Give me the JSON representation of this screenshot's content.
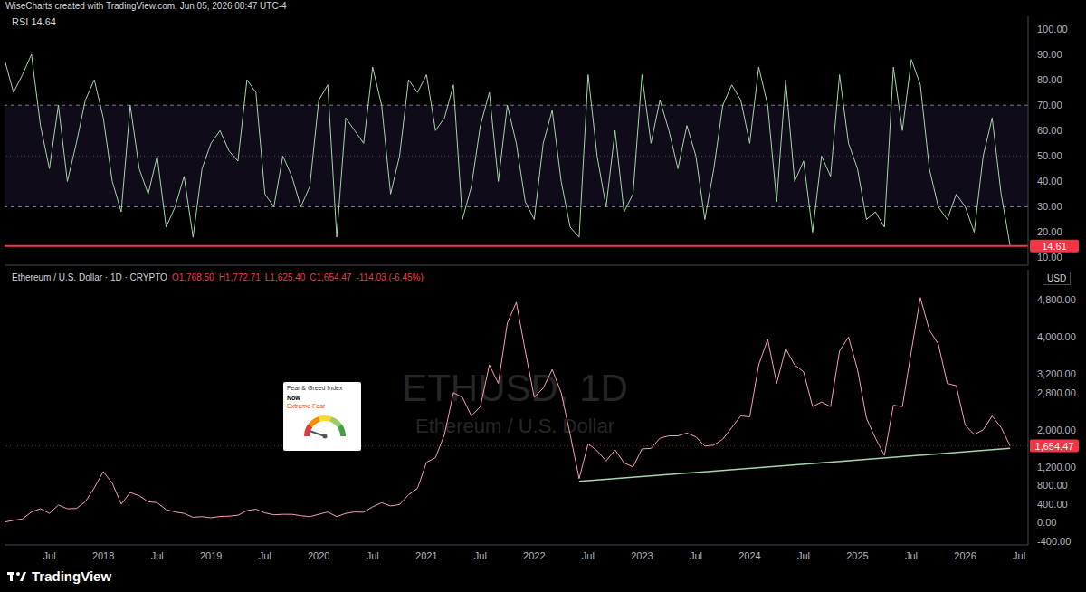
{
  "header": "WiseCharts created with TradingView.com, Jun 05, 2026 08:47 UTC-4",
  "footer": "TradingView",
  "chart_data": [
    {
      "type": "line",
      "title": "RSI 14.64",
      "x": [
        "2017-02",
        "2017-03",
        "2017-04",
        "2017-05",
        "2017-06",
        "2017-07",
        "2017-08",
        "2017-09",
        "2017-10",
        "2017-11",
        "2017-12",
        "2018-01",
        "2018-02",
        "2018-03",
        "2018-04",
        "2018-05",
        "2018-06",
        "2018-07",
        "2018-08",
        "2018-09",
        "2018-10",
        "2018-11",
        "2018-12",
        "2019-01",
        "2019-02",
        "2019-03",
        "2019-04",
        "2019-05",
        "2019-06",
        "2019-07",
        "2019-08",
        "2019-09",
        "2019-10",
        "2019-11",
        "2019-12",
        "2020-01",
        "2020-02",
        "2020-03",
        "2020-04",
        "2020-05",
        "2020-06",
        "2020-07",
        "2020-08",
        "2020-09",
        "2020-10",
        "2020-11",
        "2020-12",
        "2021-01",
        "2021-02",
        "2021-03",
        "2021-04",
        "2021-05",
        "2021-06",
        "2021-07",
        "2021-08",
        "2021-09",
        "2021-10",
        "2021-11",
        "2021-12",
        "2022-01",
        "2022-02",
        "2022-03",
        "2022-04",
        "2022-05",
        "2022-06",
        "2022-07",
        "2022-08",
        "2022-09",
        "2022-10",
        "2022-11",
        "2022-12",
        "2023-01",
        "2023-02",
        "2023-03",
        "2023-04",
        "2023-05",
        "2023-06",
        "2023-07",
        "2023-08",
        "2023-09",
        "2023-10",
        "2023-11",
        "2023-12",
        "2024-01",
        "2024-02",
        "2024-03",
        "2024-04",
        "2024-05",
        "2024-06",
        "2024-07",
        "2024-08",
        "2024-09",
        "2024-10",
        "2024-11",
        "2024-12",
        "2025-01",
        "2025-02",
        "2025-03",
        "2025-04",
        "2025-05",
        "2025-06",
        "2025-07",
        "2025-08",
        "2025-09",
        "2025-10",
        "2025-11",
        "2025-12",
        "2026-01",
        "2026-02",
        "2026-03",
        "2026-04",
        "2026-05",
        "2026-06"
      ],
      "values": [
        88,
        75,
        82,
        90,
        62,
        45,
        70,
        40,
        55,
        72,
        80,
        65,
        40,
        28,
        70,
        45,
        35,
        50,
        22,
        30,
        42,
        18,
        45,
        55,
        60,
        52,
        48,
        80,
        75,
        35,
        30,
        50,
        42,
        30,
        38,
        72,
        78,
        18,
        65,
        60,
        55,
        85,
        70,
        35,
        50,
        80,
        75,
        82,
        60,
        65,
        78,
        25,
        38,
        62,
        75,
        40,
        70,
        55,
        32,
        25,
        55,
        68,
        40,
        22,
        18,
        82,
        50,
        30,
        60,
        28,
        35,
        82,
        55,
        72,
        60,
        45,
        62,
        50,
        25,
        45,
        70,
        78,
        72,
        55,
        85,
        70,
        32,
        80,
        40,
        48,
        20,
        50,
        42,
        82,
        55,
        45,
        25,
        28,
        22,
        85,
        60,
        88,
        78,
        45,
        30,
        25,
        35,
        30,
        20,
        50,
        65,
        35,
        14.64
      ],
      "color": "#a5d6a7",
      "xlim": [
        "2017-02",
        "2026-08"
      ],
      "ylim": [
        7,
        105
      ],
      "yticks": [
        {
          "value": 10,
          "label": "10.00"
        },
        {
          "value": 20,
          "label": "20.00"
        },
        {
          "value": 30,
          "label": "30.00"
        },
        {
          "value": 40,
          "label": "40.00"
        },
        {
          "value": 50,
          "label": "50.00"
        },
        {
          "value": 60,
          "label": "60.00"
        },
        {
          "value": 70,
          "label": "70.00"
        },
        {
          "value": 80,
          "label": "80.00"
        },
        {
          "value": 90,
          "label": "90.00"
        },
        {
          "value": 100,
          "label": "100.00"
        }
      ],
      "band": [
        30,
        70
      ],
      "midline": 50,
      "reference_line": {
        "value": 14.61,
        "color": "#f23645"
      },
      "tick_labels": "y",
      "grid": false
    },
    {
      "type": "line",
      "title": "Ethereum / U.S. Dollar · 1D · CRYPTO",
      "ohlc": [
        "O1,768.50",
        "H1,772.71",
        "L1,625.40",
        "C1,654.47",
        "-114.03 (-6.45%)"
      ],
      "axis_label": "USD",
      "watermark": [
        "ETHUSD, 1D",
        "Ethereum / U.S. Dollar"
      ],
      "inset": {
        "title": "Fear & Greed Index",
        "label": "Now",
        "status": "Extreme Fear"
      },
      "x": [
        "2017-02",
        "2017-03",
        "2017-04",
        "2017-05",
        "2017-06",
        "2017-07",
        "2017-08",
        "2017-09",
        "2017-10",
        "2017-11",
        "2017-12",
        "2018-01",
        "2018-02",
        "2018-03",
        "2018-04",
        "2018-05",
        "2018-06",
        "2018-07",
        "2018-08",
        "2018-09",
        "2018-10",
        "2018-11",
        "2018-12",
        "2019-01",
        "2019-02",
        "2019-03",
        "2019-04",
        "2019-05",
        "2019-06",
        "2019-07",
        "2019-08",
        "2019-09",
        "2019-10",
        "2019-11",
        "2019-12",
        "2020-01",
        "2020-02",
        "2020-03",
        "2020-04",
        "2020-05",
        "2020-06",
        "2020-07",
        "2020-08",
        "2020-09",
        "2020-10",
        "2020-11",
        "2020-12",
        "2021-01",
        "2021-02",
        "2021-03",
        "2021-04",
        "2021-05",
        "2021-06",
        "2021-07",
        "2021-08",
        "2021-09",
        "2021-10",
        "2021-11",
        "2021-12",
        "2022-01",
        "2022-02",
        "2022-03",
        "2022-04",
        "2022-05",
        "2022-06",
        "2022-07",
        "2022-08",
        "2022-09",
        "2022-10",
        "2022-11",
        "2022-12",
        "2023-01",
        "2023-02",
        "2023-03",
        "2023-04",
        "2023-05",
        "2023-06",
        "2023-07",
        "2023-08",
        "2023-09",
        "2023-10",
        "2023-11",
        "2023-12",
        "2024-01",
        "2024-02",
        "2024-03",
        "2024-04",
        "2024-05",
        "2024-06",
        "2024-07",
        "2024-08",
        "2024-09",
        "2024-10",
        "2024-11",
        "2024-12",
        "2025-01",
        "2025-02",
        "2025-03",
        "2025-04",
        "2025-05",
        "2025-06",
        "2025-07",
        "2025-08",
        "2025-09",
        "2025-10",
        "2025-11",
        "2025-12",
        "2026-01",
        "2026-02",
        "2026-03",
        "2026-04",
        "2026-05",
        "2026-06"
      ],
      "values": [
        13,
        50,
        80,
        230,
        300,
        200,
        380,
        300,
        305,
        450,
        750,
        1100,
        850,
        400,
        650,
        580,
        450,
        430,
        280,
        230,
        200,
        115,
        130,
        105,
        135,
        140,
        160,
        260,
        290,
        210,
        170,
        180,
        180,
        150,
        130,
        180,
        230,
        130,
        200,
        230,
        225,
        340,
        430,
        360,
        390,
        600,
        740,
        1300,
        1400,
        1900,
        2800,
        2700,
        2300,
        2500,
        3400,
        3000,
        4300,
        4750,
        3700,
        2700,
        2900,
        3300,
        2800,
        1900,
        950,
        1700,
        1550,
        1330,
        1570,
        1290,
        1200,
        1590,
        1600,
        1820,
        1870,
        1870,
        1930,
        1850,
        1650,
        1670,
        1800,
        2050,
        2300,
        2280,
        3400,
        3950,
        3000,
        3750,
        3400,
        3250,
        2500,
        2600,
        2500,
        3700,
        4000,
        3300,
        2250,
        1820,
        1450,
        2530,
        2500,
        3700,
        4850,
        4150,
        3850,
        3000,
        2950,
        2100,
        1900,
        2000,
        2300,
        2050,
        1654.47
      ],
      "color": "#f7a1ae",
      "xlim": [
        "2017-02",
        "2026-08"
      ],
      "xticks": [
        {
          "value": "2017-07",
          "label": "Jul"
        },
        {
          "value": "2018-01",
          "label": "2018"
        },
        {
          "value": "2018-07",
          "label": "Jul"
        },
        {
          "value": "2019-01",
          "label": "2019"
        },
        {
          "value": "2019-07",
          "label": "Jul"
        },
        {
          "value": "2020-01",
          "label": "2020"
        },
        {
          "value": "2020-07",
          "label": "Jul"
        },
        {
          "value": "2021-01",
          "label": "2021"
        },
        {
          "value": "2021-07",
          "label": "Jul"
        },
        {
          "value": "2022-01",
          "label": "2022"
        },
        {
          "value": "2022-07",
          "label": "Jul"
        },
        {
          "value": "2023-01",
          "label": "2023"
        },
        {
          "value": "2023-07",
          "label": "Jul"
        },
        {
          "value": "2024-01",
          "label": "2024"
        },
        {
          "value": "2024-07",
          "label": "Jul"
        },
        {
          "value": "2025-01",
          "label": "2025"
        },
        {
          "value": "2025-07",
          "label": "Jul"
        },
        {
          "value": "2026-01",
          "label": "2026"
        },
        {
          "value": "2026-07",
          "label": "Jul"
        }
      ],
      "ylim": [
        -480,
        5450
      ],
      "yticks": [
        {
          "value": -400,
          "label": "-400.00"
        },
        {
          "value": 0,
          "label": "0.00"
        },
        {
          "value": 400,
          "label": "400.00"
        },
        {
          "value": 800,
          "label": "800.00"
        },
        {
          "value": 1200,
          "label": "1,200.00"
        },
        {
          "value": 2000,
          "label": "2,000.00"
        },
        {
          "value": 2800,
          "label": "2,800.00"
        },
        {
          "value": 3200,
          "label": "3,200.00"
        },
        {
          "value": 4000,
          "label": "4,000.00"
        },
        {
          "value": 4800,
          "label": "4,800.00"
        }
      ],
      "last_value": {
        "value": 1654.47,
        "label": "1,654.47",
        "color": "#f23645"
      },
      "trendline": {
        "x": [
          "2022-06",
          "2026-06"
        ],
        "values": [
          890,
          1600
        ],
        "color": "#a5d6a7"
      },
      "grid": false
    }
  ]
}
